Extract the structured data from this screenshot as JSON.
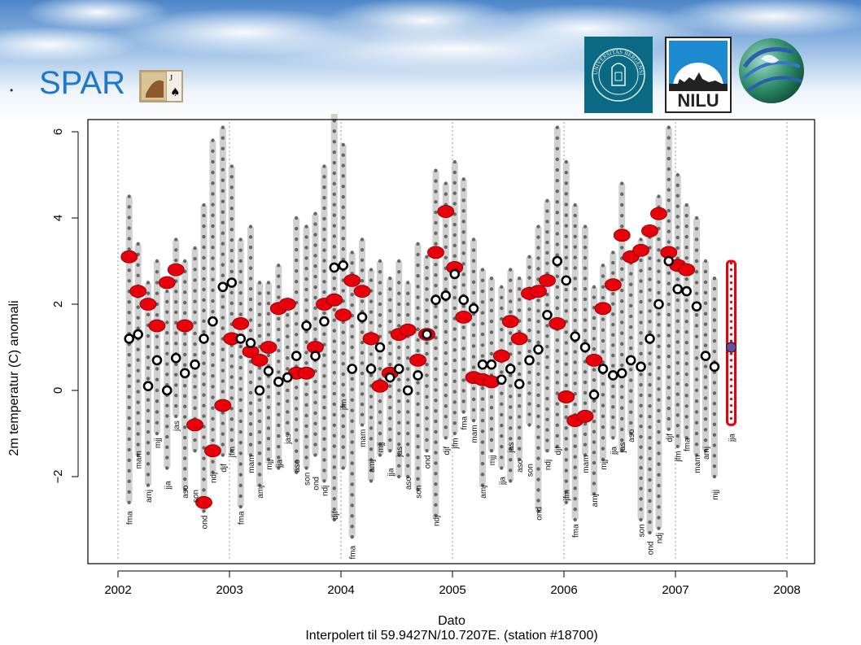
{
  "header": {
    "bullet": "•",
    "title": "SPAR",
    "logos": [
      "universitas-bergensis-seal",
      "nilu-logo",
      "globe-logo"
    ],
    "logo_uib_text": "UNIVERSITAS BERGENSIS",
    "logo_nilu_text": "NILU"
  },
  "colors": {
    "title": "#1f77c9",
    "observed": "#e8000b",
    "model": "#000000",
    "ensemble": "#d0d0d0",
    "uib": "#0a6a84"
  },
  "chart_data": {
    "type": "scatter",
    "title": "",
    "xlabel": "Dato",
    "subtitle": "Interpolert til 59.9427N/10.7207E. (station #18700)",
    "ylabel": "2m temperatur (C) anomali",
    "xlim": [
      2002,
      2008
    ],
    "ylim": [
      -4,
      6
    ],
    "xticks": [
      2002,
      2003,
      2004,
      2005,
      2006,
      2007,
      2008
    ],
    "yticks": [
      -2,
      0,
      2,
      4,
      6
    ],
    "grid": "vertical dotted lines at each year",
    "observed": {
      "x": [
        2002.1,
        2002.18,
        2002.27,
        2002.35,
        2002.44,
        2002.52,
        2002.6,
        2002.69,
        2002.77,
        2002.85,
        2002.94,
        2003.02,
        2003.1,
        2003.19,
        2003.27,
        2003.35,
        2003.44,
        2003.52,
        2003.6,
        2003.69,
        2003.77,
        2003.85,
        2003.94,
        2004.02,
        2004.1,
        2004.19,
        2004.27,
        2004.35,
        2004.44,
        2004.52,
        2004.6,
        2004.69,
        2004.77,
        2004.85,
        2004.94,
        2005.02,
        2005.1,
        2005.19,
        2005.27,
        2005.35,
        2005.44,
        2005.52,
        2005.6,
        2005.69,
        2005.77,
        2005.85,
        2005.94,
        2006.02,
        2006.1,
        2006.19,
        2006.27,
        2006.35,
        2006.44,
        2006.52,
        2006.6,
        2006.69,
        2006.77,
        2006.85,
        2006.94,
        2007.02,
        2007.1
      ],
      "y": [
        3.1,
        2.3,
        2.0,
        1.5,
        2.5,
        2.8,
        1.5,
        -0.8,
        -2.6,
        -1.4,
        -0.35,
        1.2,
        1.55,
        0.9,
        0.7,
        1.0,
        1.9,
        2.0,
        0.4,
        0.4,
        1.0,
        2.0,
        2.1,
        1.75,
        2.55,
        2.3,
        1.2,
        0.1,
        0.4,
        1.3,
        1.4,
        0.7,
        1.3,
        3.2,
        4.15,
        2.85,
        1.7,
        0.3,
        0.25,
        0.2,
        0.8,
        1.6,
        1.2,
        2.25,
        2.3,
        2.55,
        1.55,
        -0.15,
        -0.7,
        -0.6,
        0.7,
        1.9,
        2.45,
        3.6,
        3.1,
        3.25,
        3.7,
        4.1,
        3.2,
        2.9,
        2.8
      ]
    },
    "model": {
      "x": [
        2002.1,
        2002.18,
        2002.27,
        2002.35,
        2002.44,
        2002.52,
        2002.6,
        2002.69,
        2002.77,
        2002.85,
        2002.94,
        2003.02,
        2003.1,
        2003.19,
        2003.27,
        2003.35,
        2003.44,
        2003.52,
        2003.6,
        2003.69,
        2003.77,
        2003.85,
        2003.94,
        2004.02,
        2004.1,
        2004.19,
        2004.27,
        2004.35,
        2004.44,
        2004.52,
        2004.6,
        2004.69,
        2004.77,
        2004.85,
        2004.94,
        2005.02,
        2005.1,
        2005.19,
        2005.27,
        2005.35,
        2005.44,
        2005.52,
        2005.6,
        2005.69,
        2005.77,
        2005.85,
        2005.94,
        2006.02,
        2006.1,
        2006.19,
        2006.27,
        2006.35,
        2006.44,
        2006.52,
        2006.6,
        2006.69,
        2006.77,
        2006.85,
        2006.94,
        2007.02,
        2007.1,
        2007.19,
        2007.27,
        2007.35
      ],
      "y": [
        1.2,
        1.3,
        0.1,
        0.7,
        0.0,
        0.75,
        0.4,
        0.6,
        1.2,
        1.6,
        2.4,
        2.5,
        1.2,
        1.1,
        0.0,
        0.45,
        0.2,
        0.3,
        0.8,
        1.5,
        0.8,
        1.6,
        2.85,
        2.9,
        0.5,
        1.7,
        0.5,
        1.0,
        0.3,
        0.5,
        0.0,
        0.35,
        1.3,
        2.1,
        2.2,
        2.7,
        2.1,
        1.9,
        0.6,
        0.6,
        0.25,
        0.5,
        0.15,
        0.7,
        0.95,
        1.75,
        3.0,
        2.55,
        1.25,
        1.0,
        -0.1,
        0.5,
        0.35,
        0.4,
        0.7,
        0.55,
        1.2,
        2.0,
        3.0,
        2.35,
        2.3,
        1.95,
        0.8,
        0.55
      ]
    },
    "ensemble_spread": {
      "x": [
        2002.1,
        2002.18,
        2002.27,
        2002.35,
        2002.44,
        2002.52,
        2002.6,
        2002.69,
        2002.77,
        2002.85,
        2002.94,
        2003.02,
        2003.1,
        2003.19,
        2003.27,
        2003.35,
        2003.44,
        2003.52,
        2003.6,
        2003.69,
        2003.77,
        2003.85,
        2003.94,
        2004.02,
        2004.1,
        2004.19,
        2004.27,
        2004.35,
        2004.44,
        2004.52,
        2004.6,
        2004.69,
        2004.77,
        2004.85,
        2004.94,
        2005.02,
        2005.1,
        2005.19,
        2005.27,
        2005.35,
        2005.44,
        2005.52,
        2005.6,
        2005.69,
        2005.77,
        2005.85,
        2005.94,
        2006.02,
        2006.1,
        2006.19,
        2006.27,
        2006.35,
        2006.44,
        2006.52,
        2006.6,
        2006.69,
        2006.77,
        2006.85,
        2006.94,
        2007.02,
        2007.1,
        2007.19,
        2007.27,
        2007.35
      ],
      "low": [
        -2.6,
        -1.5,
        -2.2,
        -1.0,
        -1.8,
        -0.6,
        -2.3,
        -1.4,
        -2.8,
        -1.9,
        -1.5,
        -1.4,
        -2.7,
        -1.5,
        -2.2,
        -1.6,
        -1.8,
        -1.0,
        -1.9,
        -1.8,
        -1.5,
        -2.1,
        -3.0,
        -1.8,
        -3.4,
        -0.8,
        -2.1,
        -1.5,
        -1.4,
        -2.0,
        -2.0,
        -2.3,
        -1.4,
        -2.9,
        -1.1,
        -1.0,
        -0.5,
        -0.7,
        -2.2,
        -1.4,
        -1.8,
        -2.1,
        -1.6,
        -0.8,
        -2.8,
        -1.4,
        -1.3,
        -2.6,
        -3.0,
        -1.5,
        -2.4,
        -1.6,
        -1.1,
        -1.4,
        -1.0,
        -3.0,
        -3.3,
        -3.2,
        -0.9,
        -1.3,
        -1.1,
        -1.5,
        -1.4,
        -2.0
      ],
      "high": [
        4.5,
        3.4,
        2.5,
        3.0,
        2.3,
        3.5,
        3.0,
        3.3,
        4.3,
        5.8,
        6.1,
        5.2,
        3.5,
        3.8,
        2.5,
        2.5,
        2.9,
        2.0,
        4.0,
        3.8,
        4.1,
        5.2,
        6.5,
        5.7,
        3.2,
        3.5,
        2.8,
        3.0,
        2.6,
        3.0,
        2.5,
        3.4,
        3.1,
        5.1,
        4.8,
        5.3,
        4.9,
        3.5,
        2.8,
        2.6,
        2.4,
        2.8,
        2.6,
        3.1,
        3.8,
        4.4,
        6.1,
        5.3,
        4.3,
        3.8,
        2.4,
        2.9,
        3.2,
        4.8,
        3.2,
        3.5,
        3.8,
        4.5,
        6.1,
        5.0,
        4.3,
        4.0,
        3.0,
        2.6
      ]
    },
    "forecast": {
      "x": 2007.5,
      "y": 1.0,
      "low": -0.8,
      "high": 3.0
    },
    "season_labels": [
      {
        "text": "fma",
        "x": 2002.1,
        "y": -2.8
      },
      {
        "text": "mam",
        "x": 2002.18,
        "y": -1.4
      },
      {
        "text": "amj",
        "x": 2002.27,
        "y": -2.3
      },
      {
        "text": "mjj",
        "x": 2002.35,
        "y": -1.1
      },
      {
        "text": "jja",
        "x": 2002.44,
        "y": -2.1
      },
      {
        "text": "jas",
        "x": 2002.52,
        "y": -0.7
      },
      {
        "text": "aso",
        "x": 2002.6,
        "y": -2.2
      },
      {
        "text": "son",
        "x": 2002.69,
        "y": -2.3
      },
      {
        "text": "ond",
        "x": 2002.77,
        "y": -2.9
      },
      {
        "text": "ndj",
        "x": 2002.85,
        "y": -1.9
      },
      {
        "text": "djf",
        "x": 2002.94,
        "y": -1.7
      },
      {
        "text": "jfm",
        "x": 2003.02,
        "y": -1.3
      },
      {
        "text": "fma",
        "x": 2003.1,
        "y": -2.8
      },
      {
        "text": "mam",
        "x": 2003.19,
        "y": -1.5
      },
      {
        "text": "amj",
        "x": 2003.27,
        "y": -2.2
      },
      {
        "text": "mjj",
        "x": 2003.35,
        "y": -1.6
      },
      {
        "text": "jja",
        "x": 2003.44,
        "y": -1.6
      },
      {
        "text": "jas",
        "x": 2003.52,
        "y": -1.0
      },
      {
        "text": "aso",
        "x": 2003.6,
        "y": -1.6
      },
      {
        "text": "son",
        "x": 2003.69,
        "y": -1.9
      },
      {
        "text": "ond",
        "x": 2003.77,
        "y": -2.0
      },
      {
        "text": "ndj",
        "x": 2003.85,
        "y": -2.2
      },
      {
        "text": "djf",
        "x": 2003.94,
        "y": -2.8
      },
      {
        "text": "jfm",
        "x": 2004.02,
        "y": -0.2
      },
      {
        "text": "fma",
        "x": 2004.1,
        "y": -3.6
      },
      {
        "text": "mam",
        "x": 2004.19,
        "y": -0.9
      },
      {
        "text": "amj",
        "x": 2004.27,
        "y": -1.6
      },
      {
        "text": "mjj",
        "x": 2004.35,
        "y": -1.2
      },
      {
        "text": "jja",
        "x": 2004.44,
        "y": -1.8
      },
      {
        "text": "jas",
        "x": 2004.52,
        "y": -1.3
      },
      {
        "text": "aso",
        "x": 2004.6,
        "y": -2.0
      },
      {
        "text": "son",
        "x": 2004.69,
        "y": -2.2
      },
      {
        "text": "ond",
        "x": 2004.77,
        "y": -1.5
      },
      {
        "text": "ndj",
        "x": 2004.85,
        "y": -2.9
      },
      {
        "text": "djf",
        "x": 2004.94,
        "y": -1.3
      },
      {
        "text": "jfm",
        "x": 2005.02,
        "y": -1.1
      },
      {
        "text": "fma",
        "x": 2005.1,
        "y": -0.6
      },
      {
        "text": "mam",
        "x": 2005.19,
        "y": -0.8
      },
      {
        "text": "amj",
        "x": 2005.27,
        "y": -2.2
      },
      {
        "text": "mjj",
        "x": 2005.35,
        "y": -1.5
      },
      {
        "text": "jja",
        "x": 2005.44,
        "y": -2.0
      },
      {
        "text": "jas",
        "x": 2005.52,
        "y": -1.2
      },
      {
        "text": "aso",
        "x": 2005.6,
        "y": -1.6
      },
      {
        "text": "son",
        "x": 2005.69,
        "y": -1.7
      },
      {
        "text": "ond",
        "x": 2005.77,
        "y": -2.7
      },
      {
        "text": "ndj",
        "x": 2005.85,
        "y": -1.6
      },
      {
        "text": "djf",
        "x": 2005.94,
        "y": -1.3
      },
      {
        "text": "jfm",
        "x": 2006.02,
        "y": -2.3
      },
      {
        "text": "fma",
        "x": 2006.1,
        "y": -3.1
      },
      {
        "text": "mam",
        "x": 2006.19,
        "y": -1.5
      },
      {
        "text": "amj",
        "x": 2006.27,
        "y": -2.4
      },
      {
        "text": "mjj",
        "x": 2006.35,
        "y": -1.6
      },
      {
        "text": "jja",
        "x": 2006.44,
        "y": -1.3
      },
      {
        "text": "jas",
        "x": 2006.52,
        "y": -1.2
      },
      {
        "text": "aso",
        "x": 2006.6,
        "y": -0.9
      },
      {
        "text": "son",
        "x": 2006.69,
        "y": -3.1
      },
      {
        "text": "ond",
        "x": 2006.77,
        "y": -3.5
      },
      {
        "text": "ndj",
        "x": 2006.85,
        "y": -3.3
      },
      {
        "text": "djf",
        "x": 2006.94,
        "y": -1.0
      },
      {
        "text": "jfm",
        "x": 2007.02,
        "y": -1.4
      },
      {
        "text": "fma",
        "x": 2007.1,
        "y": -1.1
      },
      {
        "text": "mam",
        "x": 2007.19,
        "y": -1.5
      },
      {
        "text": "amj",
        "x": 2007.27,
        "y": -1.3
      },
      {
        "text": "mjj",
        "x": 2007.35,
        "y": -2.3
      },
      {
        "text": "jja",
        "x": 2007.5,
        "y": -1.0
      }
    ]
  }
}
